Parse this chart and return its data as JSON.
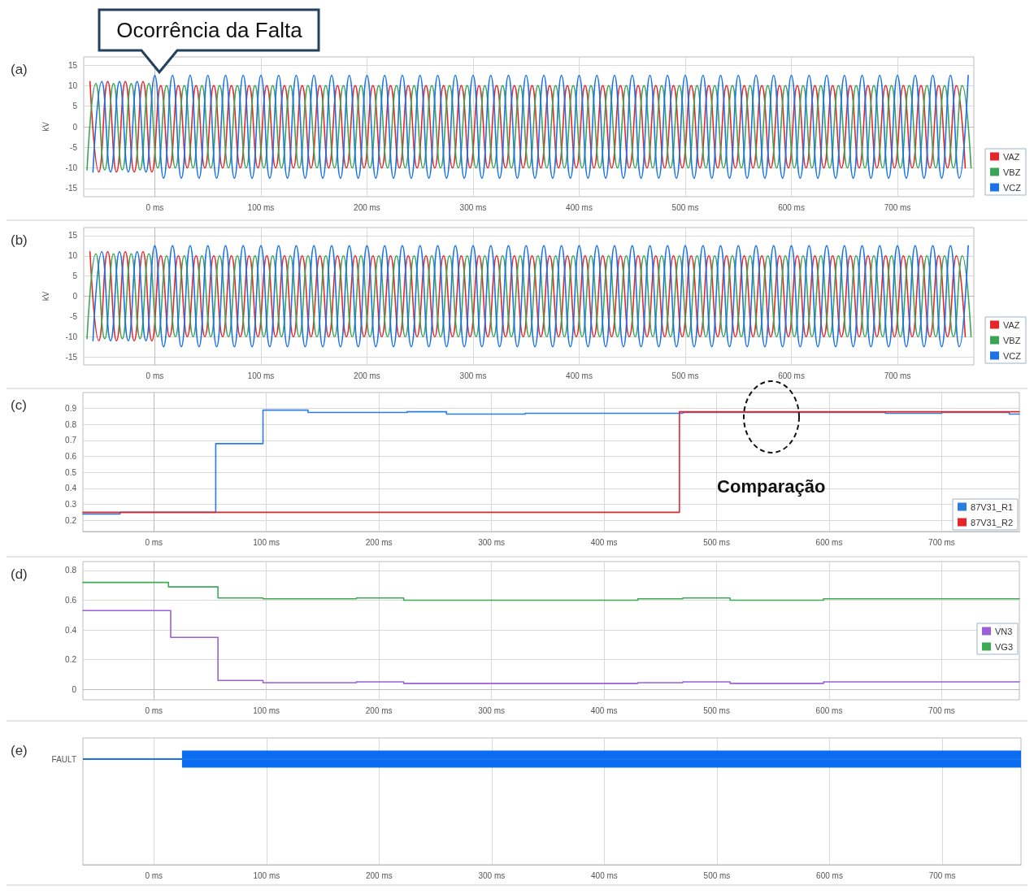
{
  "chart_data": [
    {
      "type": "line",
      "title": "(a)",
      "ylabel": "kV",
      "xlim": [
        -67,
        772
      ],
      "ylim": [
        -17,
        17
      ],
      "xticks": [
        {
          "value": 0,
          "label": "0 ms"
        },
        {
          "value": 100,
          "label": "100 ms"
        },
        {
          "value": 200,
          "label": "200 ms"
        },
        {
          "value": 300,
          "label": "300 ms"
        },
        {
          "value": 400,
          "label": "400 ms"
        },
        {
          "value": 500,
          "label": "500 ms"
        },
        {
          "value": 600,
          "label": "600 ms"
        },
        {
          "value": 700,
          "label": "700 ms"
        }
      ],
      "yticks": [
        -15,
        -10,
        -5,
        0,
        5,
        10,
        15
      ],
      "grid": true,
      "legend": "bottom right",
      "marker": "none",
      "line_style": "solid",
      "annotations": [
        {
          "text": "Ocorrência da Falta",
          "x": 0,
          "y": 12.5
        }
      ],
      "series": [
        {
          "name": "VAZ",
          "color": "#e8262a",
          "x": [
            -61.1,
            -52.8,
            -44.4,
            -36.1,
            -27.8,
            -19.4,
            -11.1,
            -2.8,
            5.6,
            13.9,
            22.2,
            30.6,
            38.9,
            47.2,
            55.6,
            63.9,
            72.2,
            80.6,
            88.9,
            97.2,
            105.6,
            113.9,
            122.2,
            130.6,
            138.9,
            147.2,
            155.6,
            163.9,
            172.2,
            180.6,
            188.9,
            197.2,
            205.6,
            213.9,
            222.2,
            230.6,
            238.9,
            247.2,
            255.6,
            263.9,
            272.2,
            280.6,
            288.9,
            297.2,
            305.6,
            313.9,
            322.2,
            330.6,
            338.9,
            347.2,
            355.6,
            363.9,
            372.2,
            380.6,
            388.9,
            397.2,
            405.6,
            413.9,
            422.2,
            430.6,
            438.9,
            447.2,
            455.6,
            463.9,
            472.2,
            480.6,
            488.9,
            497.2,
            505.6,
            513.9,
            522.2,
            530.6,
            538.9,
            547.2,
            555.6,
            563.9,
            572.2,
            580.6,
            588.9,
            597.2,
            605.6,
            613.9,
            622.2,
            630.6,
            638.9,
            647.2,
            655.6,
            663.9,
            672.2,
            680.6,
            688.9,
            697.2,
            705.6,
            713.9,
            722.2,
            730.6,
            738.9,
            747.2,
            755.6,
            763.9
          ],
          "values": [
            11,
            -11,
            11,
            -11,
            11,
            -11,
            11,
            -11,
            10,
            -10,
            10,
            -10,
            10,
            -10,
            10,
            -10,
            10,
            -10,
            10,
            -10,
            10,
            -10,
            10,
            -10,
            10,
            -10,
            10,
            -10,
            10,
            -10,
            10,
            -10,
            10,
            -10,
            10,
            -10,
            10,
            -10,
            10,
            -10,
            10,
            -10,
            10,
            -10,
            10,
            -10,
            10,
            -10,
            10,
            -10,
            10,
            -10,
            10,
            -10,
            10,
            -10,
            10,
            -10,
            10,
            -10,
            10,
            -10,
            10,
            -10,
            10,
            -10,
            10,
            -10,
            10,
            -10,
            10,
            -10,
            10,
            -10,
            10,
            -10,
            10,
            -10,
            10,
            -10,
            10,
            -10,
            10,
            -10,
            10,
            -10,
            10,
            -10,
            10,
            -10,
            10,
            -10,
            10,
            -10,
            10,
            -10,
            10,
            -10,
            10,
            -10
          ]
        },
        {
          "name": "VBZ",
          "color": "#3aa655",
          "x": [
            -63.9,
            -55.6,
            -47.2,
            -38.9,
            -30.6,
            -22.2,
            -13.9,
            -5.6,
            2.8,
            11.1,
            19.4,
            27.8,
            36.1,
            44.4,
            52.8,
            61.1,
            69.4,
            77.8,
            86.1,
            94.4,
            102.8,
            111.1,
            119.4,
            127.8,
            136.1,
            144.4,
            152.8,
            161.1,
            169.4,
            177.8,
            186.1,
            194.4,
            202.8,
            211.1,
            219.4,
            227.8,
            236.1,
            244.4,
            252.8,
            261.1,
            269.4,
            277.8,
            286.1,
            294.4,
            302.8,
            311.1,
            319.4,
            327.8,
            336.1,
            344.4,
            352.8,
            361.1,
            369.4,
            377.8,
            386.1,
            394.4,
            402.8,
            411.1,
            419.4,
            427.8,
            436.1,
            444.4,
            452.8,
            461.1,
            469.4,
            477.8,
            486.1,
            494.4,
            502.8,
            511.1,
            519.4,
            527.8,
            536.1,
            544.4,
            552.8,
            561.1,
            569.4,
            577.8,
            586.1,
            594.4,
            602.8,
            611.1,
            619.4,
            627.8,
            636.1,
            644.4,
            652.8,
            661.1,
            669.4,
            677.8,
            686.1,
            694.4,
            702.8,
            711.1,
            719.4,
            727.8,
            736.1,
            744.4,
            752.8,
            761.1,
            769.4
          ],
          "values": [
            -10.5,
            10.5,
            -10.5,
            10.5,
            -10.5,
            10.5,
            -10.5,
            10.5,
            -10,
            10,
            -10,
            10,
            -10,
            10,
            -10,
            10,
            -10,
            10,
            -10,
            10,
            -10,
            10,
            -10,
            10,
            -10,
            10,
            -10,
            10,
            -10,
            10,
            -10,
            10,
            -10,
            10,
            -10,
            10,
            -10,
            10,
            -10,
            10,
            -10,
            10,
            -10,
            10,
            -10,
            10,
            -10,
            10,
            -10,
            10,
            -10,
            10,
            -10,
            10,
            -10,
            10,
            -10,
            10,
            -10,
            10,
            -10,
            10,
            -10,
            10,
            -10,
            10,
            -10,
            10,
            -10,
            10,
            -10,
            10,
            -10,
            10,
            -10,
            10,
            -10,
            10,
            -10,
            10,
            -10,
            10,
            -10,
            10,
            -10,
            10,
            -10,
            10,
            -10,
            10,
            -10,
            10,
            -10,
            10,
            -10,
            10,
            -10,
            10,
            -10,
            10,
            -10
          ]
        },
        {
          "name": "VCZ",
          "color": "#1a73e8",
          "x": [
            -58.3,
            -50,
            -41.7,
            -33.3,
            -25,
            -16.7,
            -8.3,
            0,
            8.3,
            16.7,
            25,
            33.3,
            41.7,
            50,
            58.3,
            66.7,
            75,
            83.3,
            91.7,
            100,
            108.3,
            116.7,
            125,
            133.3,
            141.7,
            150,
            158.3,
            166.7,
            175,
            183.3,
            191.7,
            200,
            208.3,
            216.7,
            225,
            233.3,
            241.7,
            250,
            258.3,
            266.7,
            275,
            283.3,
            291.7,
            300,
            308.3,
            316.7,
            325,
            333.3,
            341.7,
            350,
            358.3,
            366.7,
            375,
            383.3,
            391.7,
            400,
            408.3,
            416.7,
            425,
            433.3,
            441.7,
            450,
            458.3,
            466.7,
            475,
            483.3,
            491.7,
            500,
            508.3,
            516.7,
            525,
            533.3,
            541.7,
            550,
            558.3,
            566.7,
            575,
            583.3,
            591.7,
            600,
            608.3,
            616.7,
            625,
            633.3,
            641.7,
            650,
            658.3,
            666.7,
            675,
            683.3,
            691.7,
            700,
            708.3,
            716.7,
            725,
            733.3,
            741.7,
            750,
            758.3,
            766.7
          ],
          "values": [
            -11,
            11,
            -11,
            11,
            -11,
            11,
            -11,
            12.5,
            -12.5,
            12.5,
            -12.5,
            12.5,
            -12.5,
            12.5,
            -12.5,
            12.5,
            -12.5,
            12.5,
            -12.5,
            12.5,
            -12.5,
            12.5,
            -12.5,
            12.5,
            -12.5,
            12.5,
            -12.5,
            12.5,
            -12.5,
            12.5,
            -12.5,
            12.5,
            -12.5,
            12.5,
            -12.5,
            12.5,
            -12.5,
            12.5,
            -12.5,
            12.5,
            -12.5,
            12.5,
            -12.5,
            12.5,
            -12.5,
            12.5,
            -12.5,
            12.5,
            -12.5,
            12.5,
            -12.5,
            12.5,
            -12.5,
            12.5,
            -12.5,
            12.5,
            -12.5,
            12.5,
            -12.5,
            12.5,
            -12.5,
            12.5,
            -12.5,
            12.5,
            -12.5,
            12.5,
            -12.5,
            12.5,
            -12.5,
            12.5,
            -12.5,
            12.5,
            -12.5,
            12.5,
            -12.5,
            12.5,
            -12.5,
            12.5,
            -12.5,
            12.5,
            -12.5,
            12.5,
            -12.5,
            12.5,
            -12.5,
            12.5,
            -12.5,
            12.5,
            -12.5,
            12.5,
            -12.5,
            12.5,
            -12.5,
            12.5,
            -12.5,
            12.5,
            -12.5,
            12.5,
            -12.5,
            12.5
          ]
        }
      ]
    },
    {
      "type": "line",
      "title": "(b)",
      "ylabel": "kV",
      "xlim": [
        -67,
        772
      ],
      "ylim": [
        -17,
        17
      ],
      "xticks": [
        {
          "value": 0,
          "label": "0 ms"
        },
        {
          "value": 100,
          "label": "100 ms"
        },
        {
          "value": 200,
          "label": "200 ms"
        },
        {
          "value": 300,
          "label": "300 ms"
        },
        {
          "value": 400,
          "label": "400 ms"
        },
        {
          "value": 500,
          "label": "500 ms"
        },
        {
          "value": 600,
          "label": "600 ms"
        },
        {
          "value": 700,
          "label": "700 ms"
        }
      ],
      "yticks": [
        -15,
        -10,
        -5,
        0,
        5,
        10,
        15
      ],
      "grid": true,
      "legend": "bottom right",
      "marker": "none",
      "line_style": "solid",
      "series": [
        {
          "name": "VAZ",
          "color": "#e8262a",
          "x": [
            -61.1,
            -52.8,
            -44.4,
            -36.1,
            -27.8,
            -19.4,
            -11.1,
            -2.8,
            5.6,
            13.9,
            22.2,
            30.6,
            38.9,
            47.2,
            55.6,
            63.9,
            72.2,
            80.6,
            88.9,
            97.2,
            105.6,
            113.9,
            122.2,
            130.6,
            138.9,
            147.2,
            155.6,
            163.9,
            172.2,
            180.6,
            188.9,
            197.2,
            205.6,
            213.9,
            222.2,
            230.6,
            238.9,
            247.2,
            255.6,
            263.9,
            272.2,
            280.6,
            288.9,
            297.2,
            305.6,
            313.9,
            322.2,
            330.6,
            338.9,
            347.2,
            355.6,
            363.9,
            372.2,
            380.6,
            388.9,
            397.2,
            405.6,
            413.9,
            422.2,
            430.6,
            438.9,
            447.2,
            455.6,
            463.9,
            472.2,
            480.6,
            488.9,
            497.2,
            505.6,
            513.9,
            522.2,
            530.6,
            538.9,
            547.2,
            555.6,
            563.9,
            572.2,
            580.6,
            588.9,
            597.2,
            605.6,
            613.9,
            622.2,
            630.6,
            638.9,
            647.2,
            655.6,
            663.9,
            672.2,
            680.6,
            688.9,
            697.2,
            705.6,
            713.9,
            722.2,
            730.6,
            738.9,
            747.2,
            755.6,
            763.9
          ],
          "values": [
            11,
            -11,
            11,
            -11,
            11,
            -11,
            11,
            -11,
            10,
            -10,
            10,
            -10,
            10,
            -10,
            10,
            -10,
            10,
            -10,
            10,
            -10,
            10,
            -10,
            10,
            -10,
            10,
            -10,
            10,
            -10,
            10,
            -10,
            10,
            -10,
            10,
            -10,
            10,
            -10,
            10,
            -10,
            10,
            -10,
            10,
            -10,
            10,
            -10,
            10,
            -10,
            10,
            -10,
            10,
            -10,
            10,
            -10,
            10,
            -10,
            10,
            -10,
            10,
            -10,
            10,
            -10,
            10,
            -10,
            10,
            -10,
            10,
            -10,
            10,
            -10,
            10,
            -10,
            10,
            -10,
            10,
            -10,
            10,
            -10,
            10,
            -10,
            10,
            -10,
            10,
            -10,
            10,
            -10,
            10,
            -10,
            10,
            -10,
            10,
            -10,
            10,
            -10,
            10,
            -10,
            10,
            -10,
            10,
            -10,
            10,
            -10
          ]
        },
        {
          "name": "VBZ",
          "color": "#3aa655",
          "x": [
            -63.9,
            -55.6,
            -47.2,
            -38.9,
            -30.6,
            -22.2,
            -13.9,
            -5.6,
            2.8,
            11.1,
            19.4,
            27.8,
            36.1,
            44.4,
            52.8,
            61.1,
            69.4,
            77.8,
            86.1,
            94.4,
            102.8,
            111.1,
            119.4,
            127.8,
            136.1,
            144.4,
            152.8,
            161.1,
            169.4,
            177.8,
            186.1,
            194.4,
            202.8,
            211.1,
            219.4,
            227.8,
            236.1,
            244.4,
            252.8,
            261.1,
            269.4,
            277.8,
            286.1,
            294.4,
            302.8,
            311.1,
            319.4,
            327.8,
            336.1,
            344.4,
            352.8,
            361.1,
            369.4,
            377.8,
            386.1,
            394.4,
            402.8,
            411.1,
            419.4,
            427.8,
            436.1,
            444.4,
            452.8,
            461.1,
            469.4,
            477.8,
            486.1,
            494.4,
            502.8,
            511.1,
            519.4,
            527.8,
            536.1,
            544.4,
            552.8,
            561.1,
            569.4,
            577.8,
            586.1,
            594.4,
            602.8,
            611.1,
            619.4,
            627.8,
            636.1,
            644.4,
            652.8,
            661.1,
            669.4,
            677.8,
            686.1,
            694.4,
            702.8,
            711.1,
            719.4,
            727.8,
            736.1,
            744.4,
            752.8,
            761.1,
            769.4
          ],
          "values": [
            -10.5,
            10.5,
            -10.5,
            10.5,
            -10.5,
            10.5,
            -10.5,
            10.5,
            -10,
            10,
            -10,
            10,
            -10,
            10,
            -10,
            10,
            -10,
            10,
            -10,
            10,
            -10,
            10,
            -10,
            10,
            -10,
            10,
            -10,
            10,
            -10,
            10,
            -10,
            10,
            -10,
            10,
            -10,
            10,
            -10,
            10,
            -10,
            10,
            -10,
            10,
            -10,
            10,
            -10,
            10,
            -10,
            10,
            -10,
            10,
            -10,
            10,
            -10,
            10,
            -10,
            10,
            -10,
            10,
            -10,
            10,
            -10,
            10,
            -10,
            10,
            -10,
            10,
            -10,
            10,
            -10,
            10,
            -10,
            10,
            -10,
            10,
            -10,
            10,
            -10,
            10,
            -10,
            10,
            -10,
            10,
            -10,
            10,
            -10,
            10,
            -10,
            10,
            -10,
            10,
            -10,
            10,
            -10,
            10,
            -10,
            10,
            -10,
            10,
            -10,
            10,
            -10
          ]
        },
        {
          "name": "VCZ",
          "color": "#1a73e8",
          "x": [
            -58.3,
            -50,
            -41.7,
            -33.3,
            -25,
            -16.7,
            -8.3,
            0,
            8.3,
            16.7,
            25,
            33.3,
            41.7,
            50,
            58.3,
            66.7,
            75,
            83.3,
            91.7,
            100,
            108.3,
            116.7,
            125,
            133.3,
            141.7,
            150,
            158.3,
            166.7,
            175,
            183.3,
            191.7,
            200,
            208.3,
            216.7,
            225,
            233.3,
            241.7,
            250,
            258.3,
            266.7,
            275,
            283.3,
            291.7,
            300,
            308.3,
            316.7,
            325,
            333.3,
            341.7,
            350,
            358.3,
            366.7,
            375,
            383.3,
            391.7,
            400,
            408.3,
            416.7,
            425,
            433.3,
            441.7,
            450,
            458.3,
            466.7,
            475,
            483.3,
            491.7,
            500,
            508.3,
            516.7,
            525,
            533.3,
            541.7,
            550,
            558.3,
            566.7,
            575,
            583.3,
            591.7,
            600,
            608.3,
            616.7,
            625,
            633.3,
            641.7,
            650,
            658.3,
            666.7,
            675,
            683.3,
            691.7,
            700,
            708.3,
            716.7,
            725,
            733.3,
            741.7,
            750,
            758.3,
            766.7
          ],
          "values": [
            -11,
            11,
            -11,
            11,
            -11,
            11,
            -11,
            12.5,
            -12.5,
            12.5,
            -12.5,
            12.5,
            -12.5,
            12.5,
            -12.5,
            12.5,
            -12.5,
            12.5,
            -12.5,
            12.5,
            -12.5,
            12.5,
            -12.5,
            12.5,
            -12.5,
            12.5,
            -12.5,
            12.5,
            -12.5,
            12.5,
            -12.5,
            12.5,
            -12.5,
            12.5,
            -12.5,
            12.5,
            -12.5,
            12.5,
            -12.5,
            12.5,
            -12.5,
            12.5,
            -12.5,
            12.5,
            -12.5,
            12.5,
            -12.5,
            12.5,
            -12.5,
            12.5,
            -12.5,
            12.5,
            -12.5,
            12.5,
            -12.5,
            12.5,
            -12.5,
            12.5,
            -12.5,
            12.5,
            -12.5,
            12.5,
            -12.5,
            12.5,
            -12.5,
            12.5,
            -12.5,
            12.5,
            -12.5,
            12.5,
            -12.5,
            12.5,
            -12.5,
            12.5,
            -12.5,
            12.5,
            -12.5,
            12.5,
            -12.5,
            12.5,
            -12.5,
            12.5,
            -12.5,
            12.5,
            -12.5,
            12.5,
            -12.5,
            12.5,
            -12.5,
            12.5,
            -12.5,
            12.5,
            -12.5,
            12.5,
            -12.5,
            12.5,
            -12.5,
            12.5,
            -12.5,
            12.5
          ]
        }
      ]
    },
    {
      "type": "step",
      "title": "(c)",
      "xlim": [
        -63,
        769
      ],
      "ylim": [
        0.13,
        1.0
      ],
      "xticks": [
        {
          "value": 0,
          "label": "0 ms"
        },
        {
          "value": 100,
          "label": "100 ms"
        },
        {
          "value": 200,
          "label": "200 ms"
        },
        {
          "value": 300,
          "label": "300 ms"
        },
        {
          "value": 400,
          "label": "400 ms"
        },
        {
          "value": 500,
          "label": "500 ms"
        },
        {
          "value": 600,
          "label": "600 ms"
        },
        {
          "value": 700,
          "label": "700 ms"
        }
      ],
      "yticks": [
        0.2,
        0.3,
        0.4,
        0.5,
        0.6,
        0.7,
        0.8,
        0.9
      ],
      "grid": true,
      "legend": "bottom right",
      "marker": "none",
      "line_style": "solid",
      "annotations": [
        "Comparação"
      ],
      "series": [
        {
          "name": "87V31_R1",
          "color": "#2a7de1",
          "x": [
            -63,
            -30,
            55,
            97,
            137,
            225,
            260,
            330,
            470,
            650,
            700,
            760,
            769
          ],
          "values": [
            0.24,
            0.25,
            0.68,
            0.89,
            0.875,
            0.88,
            0.865,
            0.87,
            0.875,
            0.87,
            0.875,
            0.865,
            0.865
          ]
        },
        {
          "name": "87V31_R2",
          "color": "#e8262a",
          "x": [
            -63,
            467,
            769
          ],
          "values": [
            0.25,
            0.88,
            0.88
          ]
        }
      ]
    },
    {
      "type": "step",
      "title": "(d)",
      "xlim": [
        -63,
        769
      ],
      "ylim": [
        -0.07,
        0.86
      ],
      "xticks": [
        {
          "value": 0,
          "label": "0 ms"
        },
        {
          "value": 100,
          "label": "100 ms"
        },
        {
          "value": 200,
          "label": "200 ms"
        },
        {
          "value": 300,
          "label": "300 ms"
        },
        {
          "value": 400,
          "label": "400 ms"
        },
        {
          "value": 500,
          "label": "500 ms"
        },
        {
          "value": 600,
          "label": "600 ms"
        },
        {
          "value": 700,
          "label": "700 ms"
        }
      ],
      "yticks": [
        0,
        0.2,
        0.4,
        0.6,
        0.8
      ],
      "grid": true,
      "legend": "right",
      "marker": "none",
      "line_style": "solid",
      "series": [
        {
          "name": "VN3",
          "color": "#9b5fd6",
          "x": [
            -63,
            15,
            57,
            97,
            180,
            222,
            430,
            470,
            512,
            595,
            769
          ],
          "values": [
            0.53,
            0.35,
            0.06,
            0.045,
            0.05,
            0.04,
            0.045,
            0.05,
            0.04,
            0.05,
            0.05
          ]
        },
        {
          "name": "VG3",
          "color": "#3dab55",
          "x": [
            -63,
            13,
            57,
            97,
            180,
            222,
            430,
            470,
            512,
            595,
            769
          ],
          "values": [
            0.72,
            0.69,
            0.615,
            0.61,
            0.615,
            0.6,
            0.61,
            0.615,
            0.6,
            0.61,
            0.61
          ]
        }
      ]
    },
    {
      "type": "bar",
      "title": "(e)",
      "orientation": "horizontal",
      "xlim": [
        -63,
        770
      ],
      "xticks": [
        {
          "value": 0,
          "label": "0 ms"
        },
        {
          "value": 100,
          "label": "100 ms"
        },
        {
          "value": 200,
          "label": "200 ms"
        },
        {
          "value": 300,
          "label": "300 ms"
        },
        {
          "value": 400,
          "label": "400 ms"
        },
        {
          "value": 500,
          "label": "500 ms"
        },
        {
          "value": 600,
          "label": "600 ms"
        },
        {
          "value": 700,
          "label": "700 ms"
        }
      ],
      "categories": [
        "FAULT",
        null,
        null
      ],
      "grid": "x",
      "ref_lines": [
        {
          "axis": "y",
          "value": "FAULT",
          "color": "#1a73e8"
        }
      ],
      "series": [
        {
          "type": "bar",
          "color": "#0a6cf0",
          "base": [
            25,
            null,
            null
          ],
          "values": [
            745,
            null,
            null
          ]
        }
      ]
    }
  ]
}
